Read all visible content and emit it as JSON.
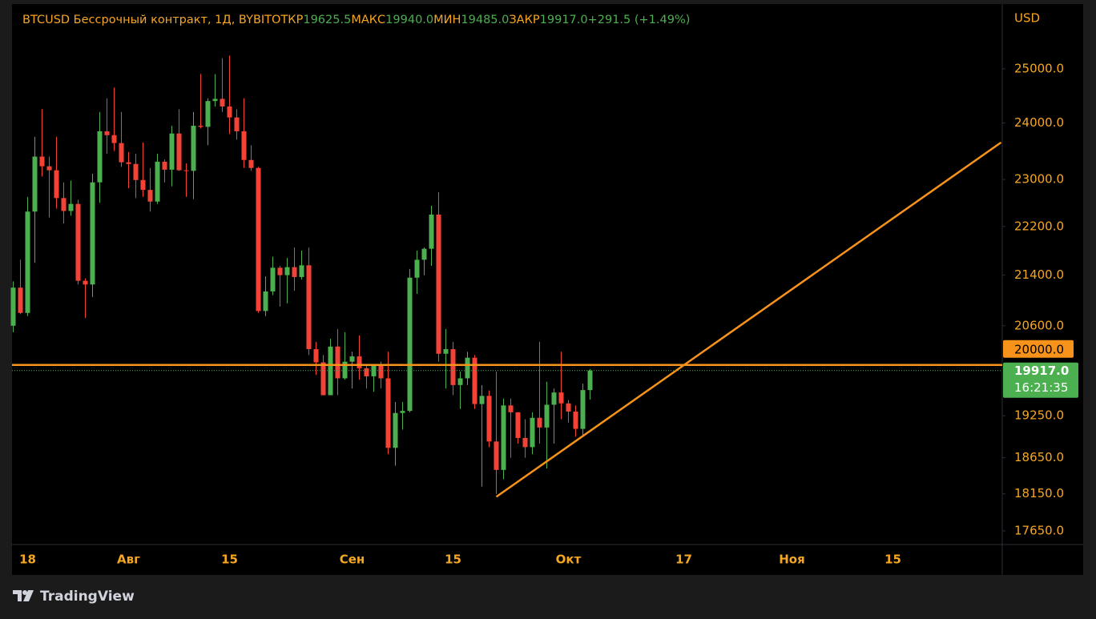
{
  "chart_data": {
    "type": "candlestick",
    "title": "BTCUSD Бессрочный контракт, 1Д, BYBIT",
    "ohlc_legend": {
      "open_label": "ОТКР",
      "open": "19625.5",
      "high_label": "МАКС",
      "high": "19940.0",
      "low_label": "МИН",
      "low": "19485.0",
      "close_label": "ЗАКР",
      "close": "19917.0",
      "change": "+291.5 (+1.49%)"
    },
    "y_unit": "USD",
    "log_scale": true,
    "grid": false,
    "up_color": "#4caf50",
    "down_color": "#f44336",
    "ylim": [
      17470,
      26250
    ],
    "yticks": [
      {
        "value": 17650,
        "label": "17650.0"
      },
      {
        "value": 18150,
        "label": "18150.0"
      },
      {
        "value": 18650,
        "label": "18650.0"
      },
      {
        "value": 19250,
        "label": "19250.0"
      },
      {
        "value": 20600,
        "label": "20600.0"
      },
      {
        "value": 21400,
        "label": "21400.0"
      },
      {
        "value": 22200,
        "label": "22200.0"
      },
      {
        "value": 23000,
        "label": "23000.0"
      },
      {
        "value": 24000,
        "label": "24000.0"
      },
      {
        "value": 25000,
        "label": "25000.0"
      }
    ],
    "categories": [
      null,
      null,
      "18",
      null,
      null,
      null,
      null,
      null,
      null,
      null,
      null,
      null,
      null,
      null,
      null,
      null,
      "Авг",
      null,
      null,
      null,
      null,
      null,
      null,
      null,
      null,
      null,
      null,
      null,
      null,
      null,
      "15",
      null,
      null,
      null,
      null,
      null,
      null,
      null,
      null,
      null,
      null,
      null,
      null,
      null,
      null,
      null,
      null,
      "Сен",
      null,
      null,
      null,
      null,
      null,
      null,
      null,
      null,
      null,
      null,
      null,
      null,
      null,
      "15",
      null,
      null,
      null,
      null,
      null,
      null,
      null,
      null,
      null,
      null,
      null,
      null,
      null,
      null,
      null,
      "Окт",
      null,
      null,
      null,
      null,
      null,
      null,
      null,
      null,
      null,
      null,
      null,
      null,
      null,
      null,
      null,
      "17",
      null,
      null,
      null,
      null,
      null,
      null,
      null,
      null,
      null,
      null,
      null,
      null,
      null,
      null,
      "Ноя",
      null,
      null,
      null,
      null,
      null,
      null,
      null,
      null,
      null,
      null,
      null,
      null,
      null,
      "15",
      null,
      null,
      null,
      null,
      null,
      null,
      null,
      null,
      null,
      null,
      null,
      null,
      null,
      null,
      null
    ],
    "open": [
      20600,
      21200,
      20800,
      22450,
      23400,
      23230,
      23160,
      22680,
      22460,
      22580,
      21310,
      21250,
      22950,
      23850,
      23780,
      23640,
      23300,
      23270,
      22990,
      22820,
      22620,
      23310,
      23170,
      23810,
      23160,
      23150,
      23950,
      23930,
      24400,
      24440,
      24300,
      24100,
      23850,
      23340,
      23200,
      20830,
      21140,
      21520,
      21400,
      21530,
      21370,
      21560,
      20240,
      20040,
      19550,
      20280,
      19800,
      20050,
      20130,
      19950,
      19830,
      19990,
      19800,
      18790,
      19290,
      19320,
      21360,
      21650,
      21830,
      22400,
      20170,
      20240,
      19700,
      19800,
      20110,
      19420,
      19540,
      18880,
      18480,
      19400,
      19300,
      18930,
      18800,
      19220,
      19080,
      19410,
      19590,
      19430,
      19310,
      19060,
      19625.5,
      null,
      null,
      null,
      null,
      null,
      null,
      null,
      null,
      null,
      null,
      null,
      null,
      null,
      null,
      null,
      null,
      null,
      null,
      null,
      null,
      null,
      null,
      null,
      null,
      null,
      null,
      null,
      null,
      null,
      null,
      null,
      null,
      null,
      null,
      null,
      null,
      null,
      null,
      null,
      null,
      null,
      null,
      null,
      null,
      null,
      null,
      null,
      null,
      null,
      null,
      null,
      null,
      null,
      null,
      null,
      null,
      null
    ],
    "high": [
      21300,
      21650,
      22700,
      23750,
      24250,
      23400,
      23750,
      22950,
      22980,
      22650,
      21350,
      23100,
      24200,
      24450,
      24650,
      24200,
      23480,
      23450,
      23650,
      23200,
      23450,
      23350,
      23950,
      24250,
      23280,
      24200,
      24900,
      24450,
      24900,
      25200,
      25250,
      24250,
      24450,
      23600,
      23220,
      21380,
      21700,
      21550,
      21680,
      21850,
      21800,
      21850,
      20350,
      20150,
      20400,
      20550,
      20500,
      20200,
      20450,
      20000,
      20000,
      20050,
      20200,
      19450,
      19450,
      21500,
      21800,
      21850,
      22550,
      22780,
      20550,
      20350,
      19900,
      20200,
      20150,
      19700,
      19620,
      19900,
      19500,
      19500,
      19300,
      19200,
      19300,
      20350,
      19750,
      19650,
      20200,
      19480,
      19400,
      19720,
      19940,
      null,
      null,
      null,
      null,
      null,
      null,
      null,
      null,
      null,
      null,
      null,
      null,
      null,
      null,
      null,
      null,
      null,
      null,
      null,
      null,
      null,
      null,
      null,
      null,
      null,
      null,
      null,
      null,
      null,
      null,
      null,
      null,
      null,
      null,
      null,
      null,
      null,
      null,
      null,
      null,
      null,
      null,
      null,
      null,
      null,
      null,
      null,
      null,
      null,
      null,
      null,
      null,
      null,
      null,
      null,
      null,
      null
    ],
    "low": [
      20500,
      20780,
      20750,
      21600,
      23050,
      22350,
      22500,
      22250,
      22380,
      21250,
      20720,
      21050,
      22600,
      23450,
      23500,
      23220,
      22850,
      22680,
      22700,
      22450,
      22580,
      22950,
      22880,
      23150,
      22700,
      22660,
      23900,
      23600,
      24300,
      24200,
      23800,
      23700,
      23200,
      23150,
      20800,
      20750,
      21080,
      20900,
      20950,
      21150,
      21330,
      20150,
      19850,
      19550,
      19550,
      19550,
      19780,
      19650,
      19780,
      19650,
      19600,
      19650,
      18700,
      18540,
      19050,
      19300,
      21100,
      21400,
      21550,
      20050,
      19650,
      19550,
      19350,
      19700,
      19350,
      18250,
      18800,
      18150,
      18350,
      18650,
      18850,
      18650,
      18700,
      18850,
      18500,
      18850,
      19200,
      19150,
      18950,
      18970,
      19485,
      null,
      null,
      null,
      null,
      null,
      null,
      null,
      null,
      null,
      null,
      null,
      null,
      null,
      null,
      null,
      null,
      null,
      null,
      null,
      null,
      null,
      null,
      null,
      null,
      null,
      null,
      null,
      null,
      null,
      null,
      null,
      null,
      null,
      null,
      null,
      null,
      null,
      null,
      null,
      null,
      null,
      null,
      null,
      null,
      null,
      null,
      null,
      null,
      null,
      null,
      null,
      null,
      null,
      null,
      null,
      null,
      null
    ],
    "close": [
      21200,
      20800,
      22450,
      23400,
      23230,
      23160,
      22680,
      22460,
      22580,
      21310,
      21250,
      22950,
      23850,
      23780,
      23640,
      23300,
      23270,
      22990,
      22820,
      22620,
      23310,
      23170,
      23810,
      23160,
      23150,
      23950,
      23930,
      24400,
      24440,
      24300,
      24100,
      23850,
      23340,
      23200,
      20830,
      21140,
      21520,
      21400,
      21530,
      21370,
      21560,
      20240,
      20040,
      19550,
      20280,
      19800,
      20050,
      20130,
      19950,
      19830,
      19990,
      19800,
      18790,
      19290,
      19320,
      21360,
      21650,
      21830,
      22400,
      20170,
      20240,
      19700,
      19800,
      20110,
      19420,
      19540,
      18880,
      18480,
      19400,
      19300,
      18930,
      18800,
      19220,
      19080,
      19410,
      19590,
      19430,
      19310,
      19060,
      19625.5,
      19917,
      null,
      null,
      null,
      null,
      null,
      null,
      null,
      null,
      null,
      null,
      null,
      null,
      null,
      null,
      null,
      null,
      null,
      null,
      null,
      null,
      null,
      null,
      null,
      null,
      null,
      null,
      null,
      null,
      null,
      null,
      null,
      null,
      null,
      null,
      null,
      null,
      null,
      null,
      null,
      null,
      null,
      null,
      null,
      null,
      null,
      null,
      null,
      null,
      null,
      null,
      null,
      null,
      null,
      null,
      null,
      null,
      null
    ],
    "last_price": {
      "value": 19917,
      "label": "19917.0",
      "countdown": "16:21:35",
      "color": "#4caf50"
    },
    "horizontal_line": {
      "value": 20000,
      "label": "20000.0",
      "color": "#f7931a"
    },
    "trend_line": {
      "x": [
        67,
        137
      ],
      "y": [
        18110,
        23650
      ],
      "color": "#f7931a"
    }
  },
  "branding": "TradingView"
}
